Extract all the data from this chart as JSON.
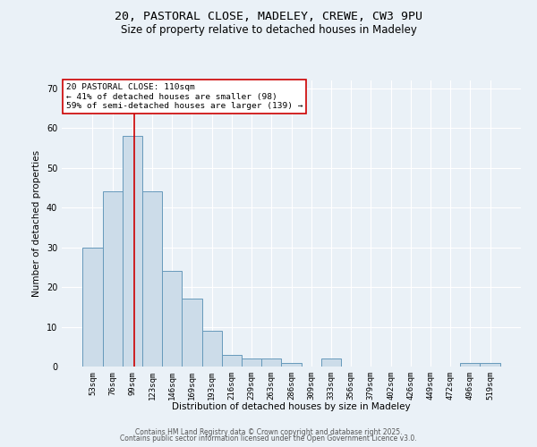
{
  "title1": "20, PASTORAL CLOSE, MADELEY, CREWE, CW3 9PU",
  "title2": "Size of property relative to detached houses in Madeley",
  "xlabel": "Distribution of detached houses by size in Madeley",
  "ylabel": "Number of detached properties",
  "categories": [
    "53sqm",
    "76sqm",
    "99sqm",
    "123sqm",
    "146sqm",
    "169sqm",
    "193sqm",
    "216sqm",
    "239sqm",
    "263sqm",
    "286sqm",
    "309sqm",
    "333sqm",
    "356sqm",
    "379sqm",
    "402sqm",
    "426sqm",
    "449sqm",
    "472sqm",
    "496sqm",
    "519sqm"
  ],
  "values": [
    30,
    44,
    58,
    44,
    24,
    17,
    9,
    3,
    2,
    2,
    1,
    0,
    2,
    0,
    0,
    0,
    0,
    0,
    0,
    1,
    1
  ],
  "bar_color": "#ccdce9",
  "bar_edge_color": "#6699bb",
  "red_line_x": 2.1,
  "red_line_color": "#cc0000",
  "annotation_text": "20 PASTORAL CLOSE: 110sqm\n← 41% of detached houses are smaller (98)\n59% of semi-detached houses are larger (139) →",
  "annotation_box_color": "#ffffff",
  "annotation_box_edge": "#cc0000",
  "ylim": [
    0,
    72
  ],
  "yticks": [
    0,
    10,
    20,
    30,
    40,
    50,
    60,
    70
  ],
  "footer1": "Contains HM Land Registry data © Crown copyright and database right 2025.",
  "footer2": "Contains public sector information licensed under the Open Government Licence v3.0.",
  "bg_color": "#eaf1f7",
  "plot_bg_color": "#eaf1f7",
  "grid_color": "#ffffff",
  "title_fontsize": 9.5,
  "subtitle_fontsize": 8.5,
  "axis_label_fontsize": 7.5,
  "tick_fontsize": 6.5,
  "annot_fontsize": 6.8,
  "footer_fontsize": 5.5
}
